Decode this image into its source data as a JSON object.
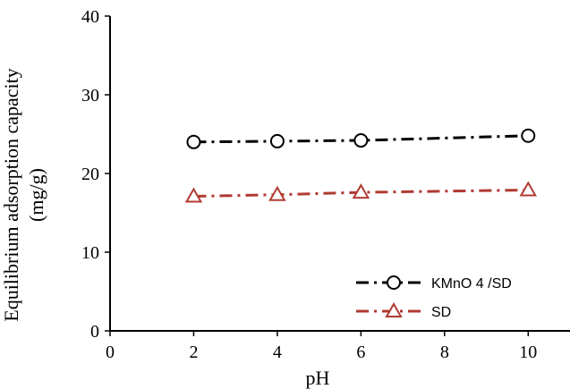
{
  "chart_data": {
    "type": "line",
    "title": "",
    "xlabel": "pH",
    "ylabel": "Equilibrium adsorption capacity",
    "ylabel_unit": "(mg/g)",
    "xlim": [
      0,
      11
    ],
    "ylim": [
      0,
      40
    ],
    "xticks": [
      0,
      2,
      4,
      6,
      8,
      10
    ],
    "yticks": [
      0,
      10,
      20,
      30,
      40
    ],
    "grid": false,
    "legend_position": "bottom-right",
    "series": [
      {
        "name": "KMnO 4 /SD",
        "color": "#000000",
        "marker": "circle",
        "line_style": "dash-dot",
        "x": [
          2,
          4,
          6,
          10
        ],
        "y": [
          24.0,
          24.1,
          24.2,
          24.8
        ]
      },
      {
        "name": "SD",
        "color": "#b03a32",
        "marker": "triangle",
        "line_style": "dash-dot",
        "x": [
          2,
          4,
          6,
          10
        ],
        "y": [
          17.1,
          17.3,
          17.6,
          17.9
        ]
      }
    ]
  }
}
